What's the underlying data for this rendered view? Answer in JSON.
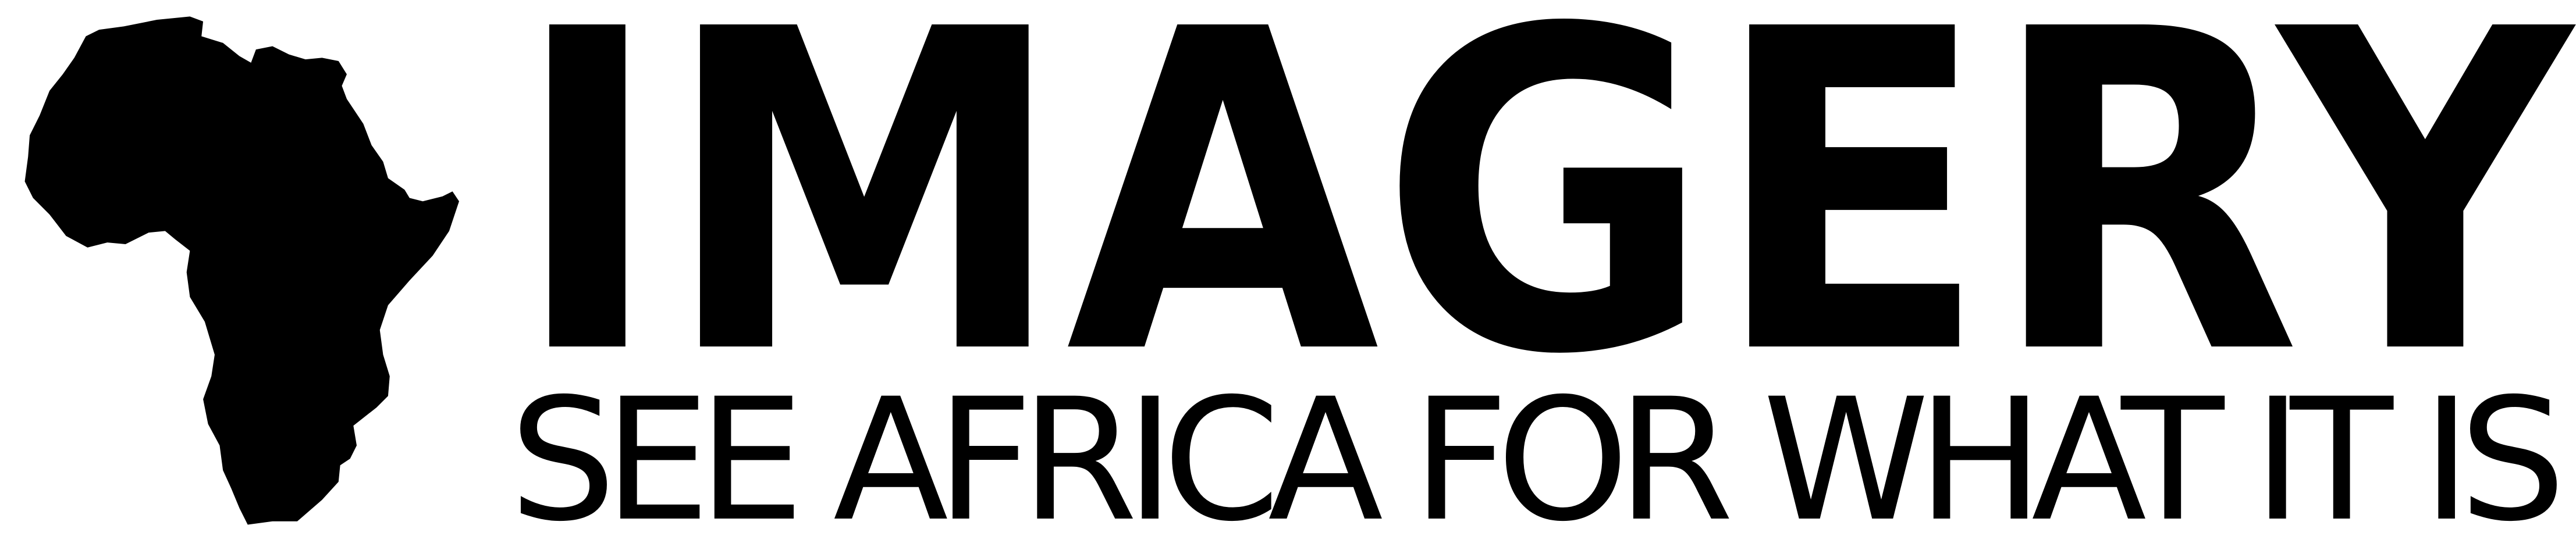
{
  "logo": {
    "title": "IMAGERY",
    "tagline": "SEE AFRICA FOR WHAT IT IS"
  }
}
